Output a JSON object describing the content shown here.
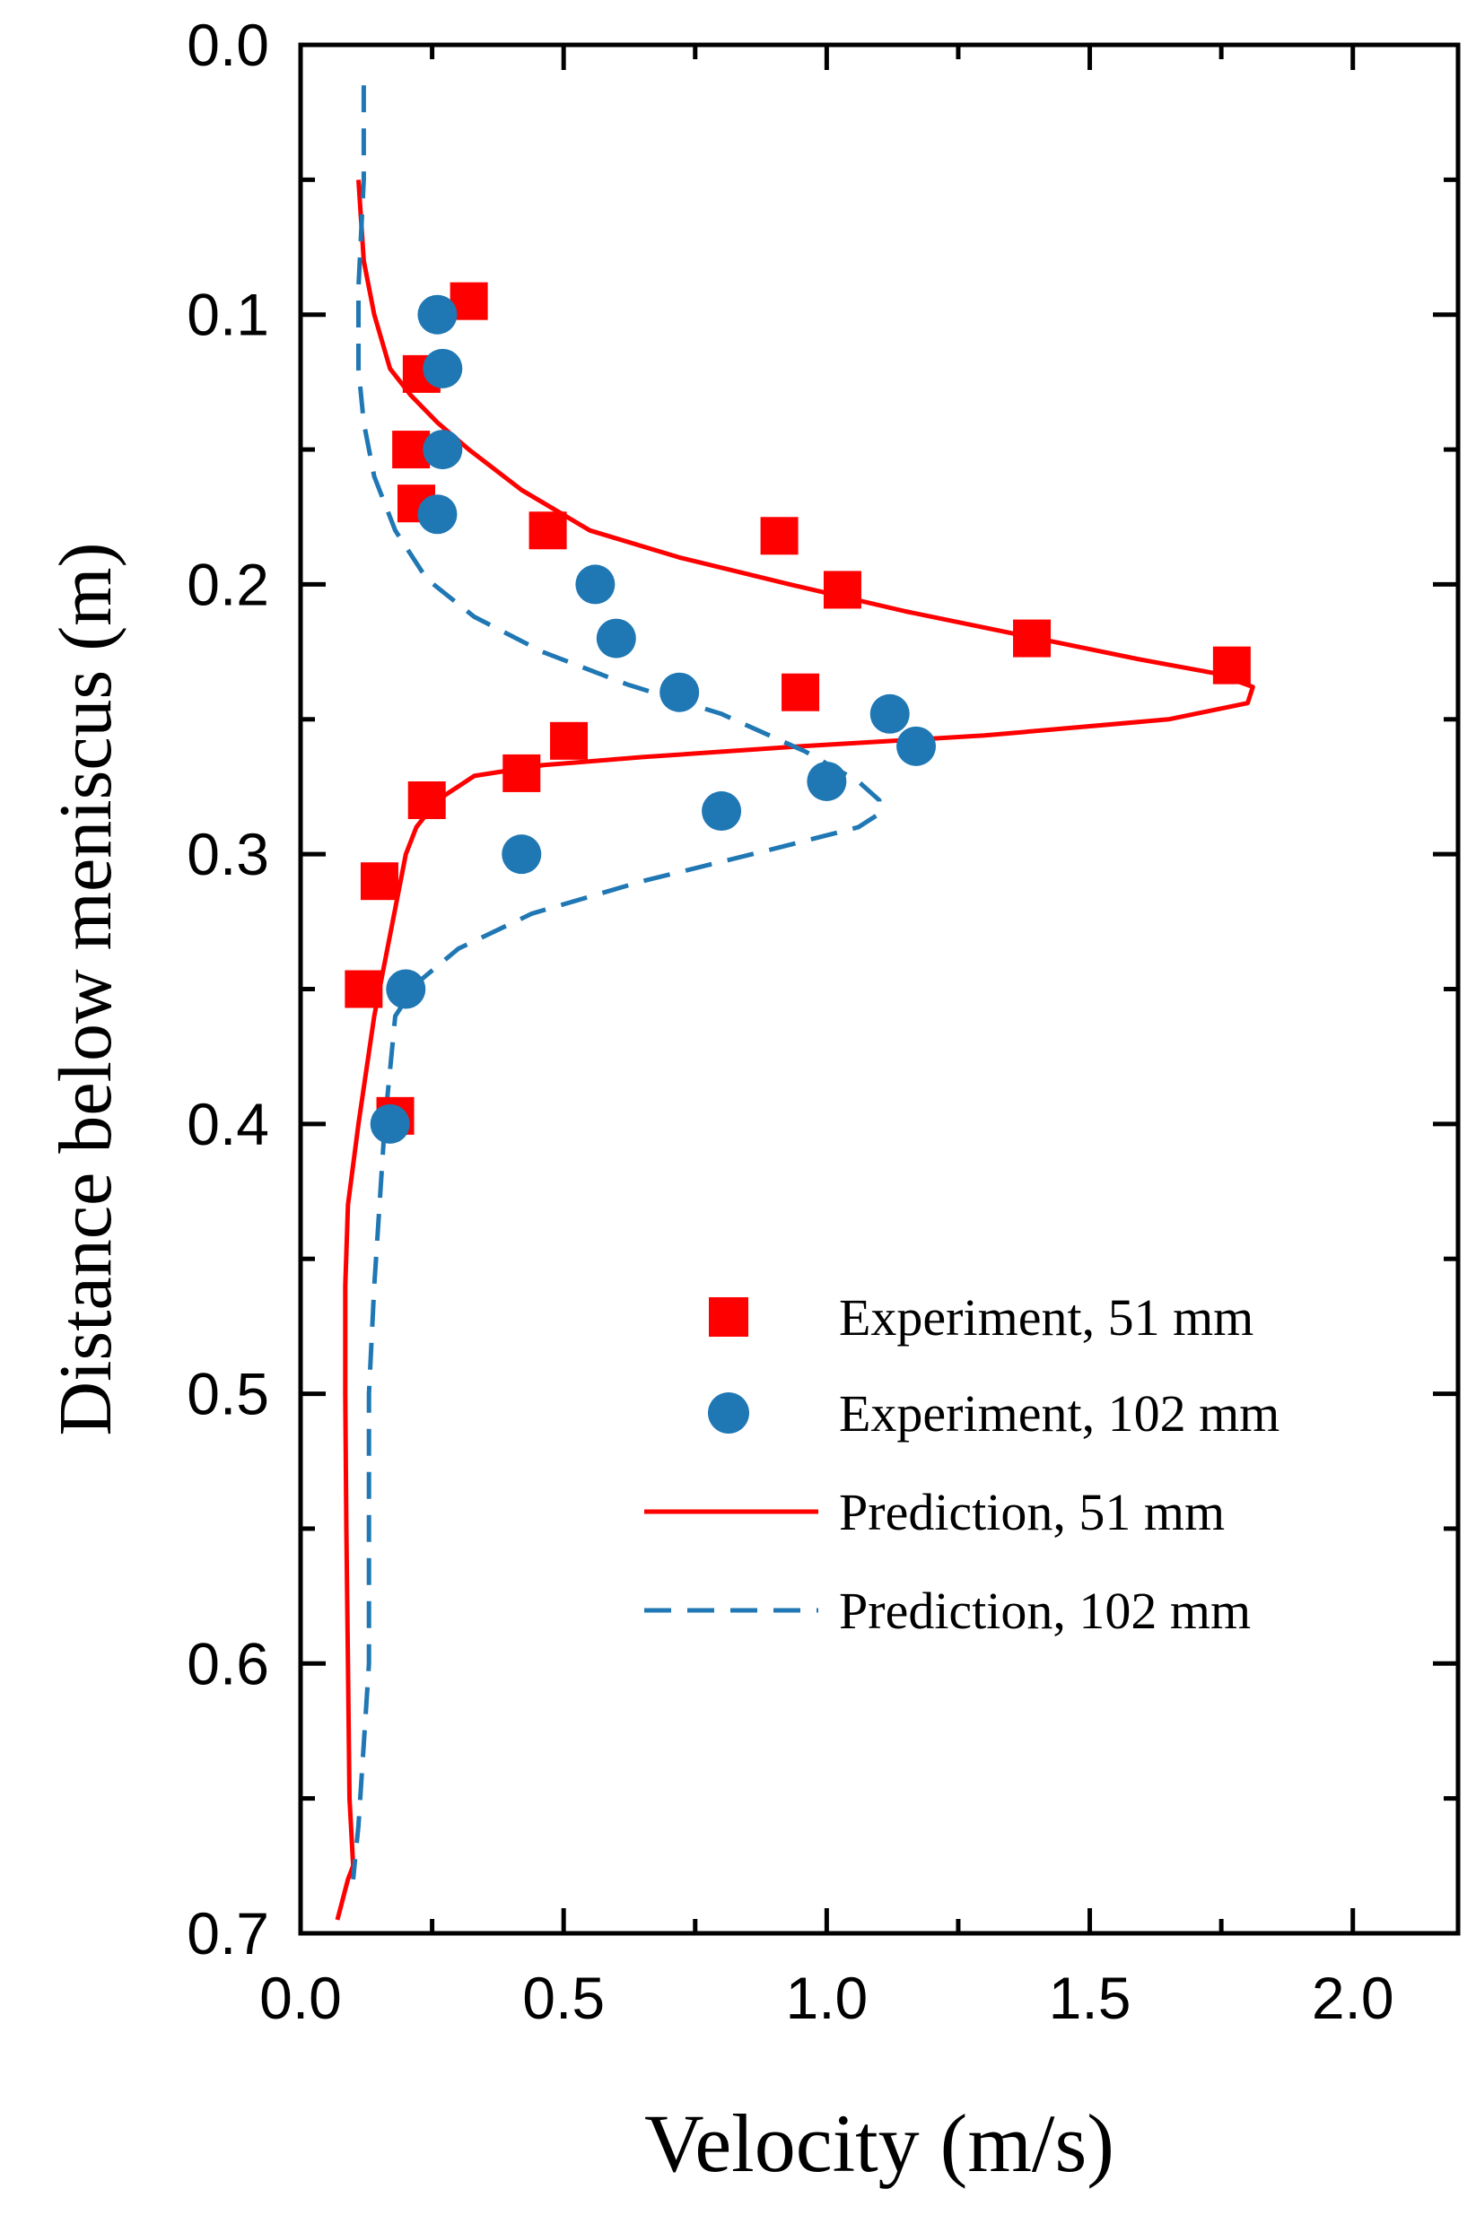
{
  "chart_data": {
    "type": "scatter",
    "title": "",
    "xlabel": "Velocity (m/s)",
    "ylabel": "Distance below meniscus (m)",
    "xlim": [
      0.0,
      2.2
    ],
    "ylim": [
      0.0,
      0.7
    ],
    "y_inverted": true,
    "x_ticks": [
      0.0,
      0.5,
      1.0,
      1.5,
      2.0
    ],
    "x_tick_labels": [
      "0.0",
      "0.5",
      "1.0",
      "1.5",
      "2.0"
    ],
    "y_ticks": [
      0.0,
      0.1,
      0.2,
      0.3,
      0.4,
      0.5,
      0.6,
      0.7
    ],
    "y_tick_labels": [
      "0.0",
      "0.1",
      "0.2",
      "0.3",
      "0.4",
      "0.5",
      "0.6",
      "0.7"
    ],
    "grid": false,
    "legend_position": "lower-right",
    "colors": {
      "red": "#ff0000",
      "blue": "#1f77b4"
    },
    "series": [
      {
        "name": "Experiment, 51 mm",
        "kind": "marker-square",
        "color": "#ff0000",
        "x": [
          0.32,
          0.23,
          0.21,
          0.22,
          0.47,
          0.91,
          1.03,
          1.39,
          1.77,
          0.95,
          0.51,
          0.42,
          0.24,
          0.15,
          0.12,
          0.18
        ],
        "y": [
          0.095,
          0.122,
          0.15,
          0.17,
          0.18,
          0.182,
          0.202,
          0.22,
          0.23,
          0.24,
          0.258,
          0.27,
          0.28,
          0.31,
          0.35,
          0.397
        ]
      },
      {
        "name": "Experiment, 102 mm",
        "kind": "marker-circle",
        "color": "#1f77b4",
        "x": [
          0.26,
          0.27,
          0.27,
          0.26,
          0.56,
          0.6,
          0.72,
          1.12,
          1.17,
          1.0,
          0.8,
          0.42,
          0.2,
          0.17
        ],
        "y": [
          0.1,
          0.12,
          0.15,
          0.174,
          0.2,
          0.22,
          0.24,
          0.248,
          0.26,
          0.273,
          0.284,
          0.3,
          0.35,
          0.4
        ]
      },
      {
        "name": "Prediction, 51 mm",
        "kind": "line-solid",
        "color": "#ff0000",
        "x": [
          0.11,
          0.12,
          0.14,
          0.17,
          0.21,
          0.26,
          0.32,
          0.42,
          0.55,
          0.72,
          0.93,
          1.15,
          1.4,
          1.6,
          1.74,
          1.81,
          1.8,
          1.65,
          1.3,
          0.95,
          0.65,
          0.46,
          0.33,
          0.26,
          0.22,
          0.2,
          0.17,
          0.14,
          0.11,
          0.09,
          0.085,
          0.085,
          0.087,
          0.09,
          0.093,
          0.1,
          0.09,
          0.07
        ],
        "y": [
          0.05,
          0.08,
          0.1,
          0.12,
          0.13,
          0.14,
          0.15,
          0.165,
          0.18,
          0.19,
          0.2,
          0.21,
          0.22,
          0.228,
          0.233,
          0.238,
          0.244,
          0.25,
          0.256,
          0.26,
          0.264,
          0.267,
          0.271,
          0.28,
          0.29,
          0.3,
          0.33,
          0.36,
          0.4,
          0.43,
          0.46,
          0.5,
          0.55,
          0.6,
          0.65,
          0.675,
          0.68,
          0.695
        ]
      },
      {
        "name": "Prediction, 102 mm",
        "kind": "line-dashed",
        "color": "#1f77b4",
        "x": [
          0.12,
          0.12,
          0.11,
          0.11,
          0.12,
          0.14,
          0.18,
          0.24,
          0.33,
          0.46,
          0.62,
          0.8,
          0.96,
          1.06,
          1.1,
          1.1,
          1.06,
          0.9,
          0.65,
          0.44,
          0.3,
          0.22,
          0.18,
          0.17,
          0.16,
          0.15,
          0.14,
          0.13,
          0.13,
          0.13,
          0.12,
          0.11,
          0.1
        ],
        "y": [
          0.015,
          0.05,
          0.09,
          0.12,
          0.14,
          0.16,
          0.18,
          0.198,
          0.212,
          0.225,
          0.237,
          0.248,
          0.262,
          0.273,
          0.28,
          0.285,
          0.29,
          0.298,
          0.31,
          0.322,
          0.335,
          0.348,
          0.36,
          0.38,
          0.4,
          0.43,
          0.46,
          0.5,
          0.55,
          0.6,
          0.63,
          0.66,
          0.68
        ]
      }
    ]
  }
}
